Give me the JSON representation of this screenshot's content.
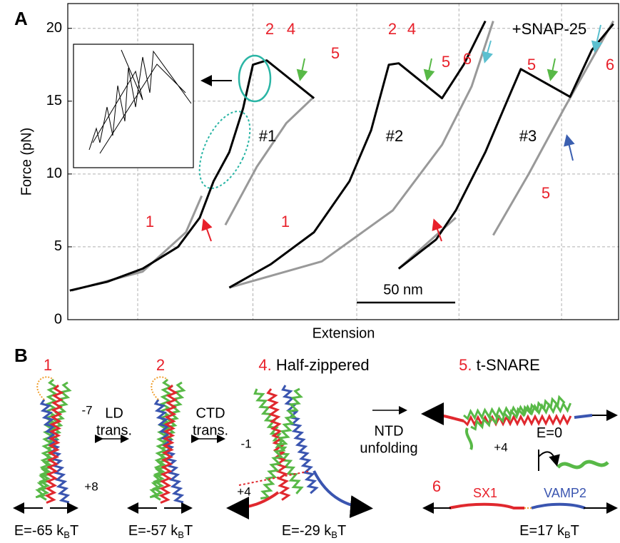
{
  "panel_a_label": "A",
  "chart_data": {
    "type": "line",
    "ylabel": "Force (pN)",
    "xlabel": "Extension",
    "xlim": [
      0,
      280
    ],
    "ylim": [
      0,
      21.7
    ],
    "yticks": [
      0,
      5,
      10,
      15,
      20
    ],
    "xticks": [
      35.5,
      94,
      146.7,
      198.6,
      250.7
    ],
    "xtick_labels": false,
    "grid": true,
    "scale_bar": {
      "value": 50,
      "label": "50 nm"
    },
    "series": [
      {
        "color": "#999999",
        "x": [
          2,
          38,
          60,
          68,
          null,
          80,
          96,
          111,
          125
        ],
        "values": [
          2.0,
          3.3,
          6.0,
          8.5,
          null,
          6.5,
          10.5,
          13.5,
          15.3
        ]
      },
      {
        "color": "#999999",
        "x": [
          82,
          129,
          165,
          190,
          205,
          216
        ],
        "values": [
          2.2,
          4.0,
          7.5,
          12.0,
          16.0,
          20.5
        ]
      },
      {
        "color": "#999999",
        "x": [
          168,
          197,
          null,
          216,
          234,
          252,
          277
        ],
        "values": [
          3.5,
          7.0,
          null,
          5.8,
          10.0,
          14.5,
          20.5
        ]
      },
      {
        "color": "#000000",
        "x": [
          1,
          20,
          38,
          56,
          67,
          74,
          82,
          89,
          94,
          101,
          125
        ],
        "values": [
          2.0,
          2.6,
          3.5,
          5.0,
          7.0,
          9.5,
          11.5,
          14.5,
          17.5,
          17.8,
          15.2
        ]
      },
      {
        "color": "#000000",
        "x": [
          82,
          103,
          125,
          143,
          154,
          163,
          168,
          190,
          201,
          212
        ],
        "values": [
          2.2,
          3.8,
          6.0,
          9.5,
          13.0,
          17.5,
          17.6,
          15.2,
          17.5,
          20.5
        ]
      },
      {
        "color": "#000000",
        "x": [
          168,
          187,
          197,
          212,
          223,
          230,
          255,
          266,
          277
        ],
        "values": [
          3.5,
          5.5,
          7.5,
          11.5,
          15.0,
          17.2,
          15.3,
          18.5,
          20.3
        ]
      }
    ],
    "annotations": [
      {
        "text": "2",
        "color": "#e8202a"
      },
      {
        "text": "4",
        "color": "#e8202a"
      },
      {
        "text": "5",
        "color": "#e8202a"
      },
      {
        "text": "#1",
        "color": "#000000"
      },
      {
        "text": "1",
        "color": "#e8202a"
      },
      {
        "text": "2",
        "color": "#e8202a"
      },
      {
        "text": "4",
        "color": "#e8202a"
      },
      {
        "text": "5",
        "color": "#e8202a"
      },
      {
        "text": "6",
        "color": "#e8202a"
      },
      {
        "text": "#2",
        "color": "#000000"
      },
      {
        "text": "1",
        "color": "#e8202a"
      },
      {
        "text": "+SNAP-25",
        "color": "#000000"
      },
      {
        "text": "5",
        "color": "#e8202a"
      },
      {
        "text": "6",
        "color": "#e8202a"
      },
      {
        "text": "#3",
        "color": "#000000"
      },
      {
        "text": "5",
        "color": "#e8202a"
      }
    ]
  },
  "panel_b": {
    "label": "B",
    "states": [
      {
        "num": "1",
        "energy": {
          "prefix": "E=-65 k",
          "sub": "B",
          "suffix": "T"
        }
      },
      {
        "num": "2",
        "energy": {
          "prefix": "E=-57 k",
          "sub": "B",
          "suffix": "T"
        }
      },
      {
        "num": "4.",
        "name": " Half-zippered",
        "energy": {
          "prefix": "E=-29 k",
          "sub": "B",
          "suffix": "T"
        }
      },
      {
        "num": "5.",
        "name": " t-SNARE",
        "energy": {
          "prefix": "E=0"
        }
      },
      {
        "num": "6",
        "energy": {
          "prefix": "E=17 k",
          "sub": "B",
          "suffix": "T"
        }
      }
    ],
    "transitions": [
      [
        "LD",
        "trans."
      ],
      [
        "CTD",
        "trans."
      ],
      [
        "NTD",
        "unfolding"
      ]
    ],
    "layer_labels": [
      "-7",
      "+8",
      "-1",
      "+4",
      "+4"
    ],
    "proteins": [
      "SX1",
      "VAMP2"
    ]
  }
}
